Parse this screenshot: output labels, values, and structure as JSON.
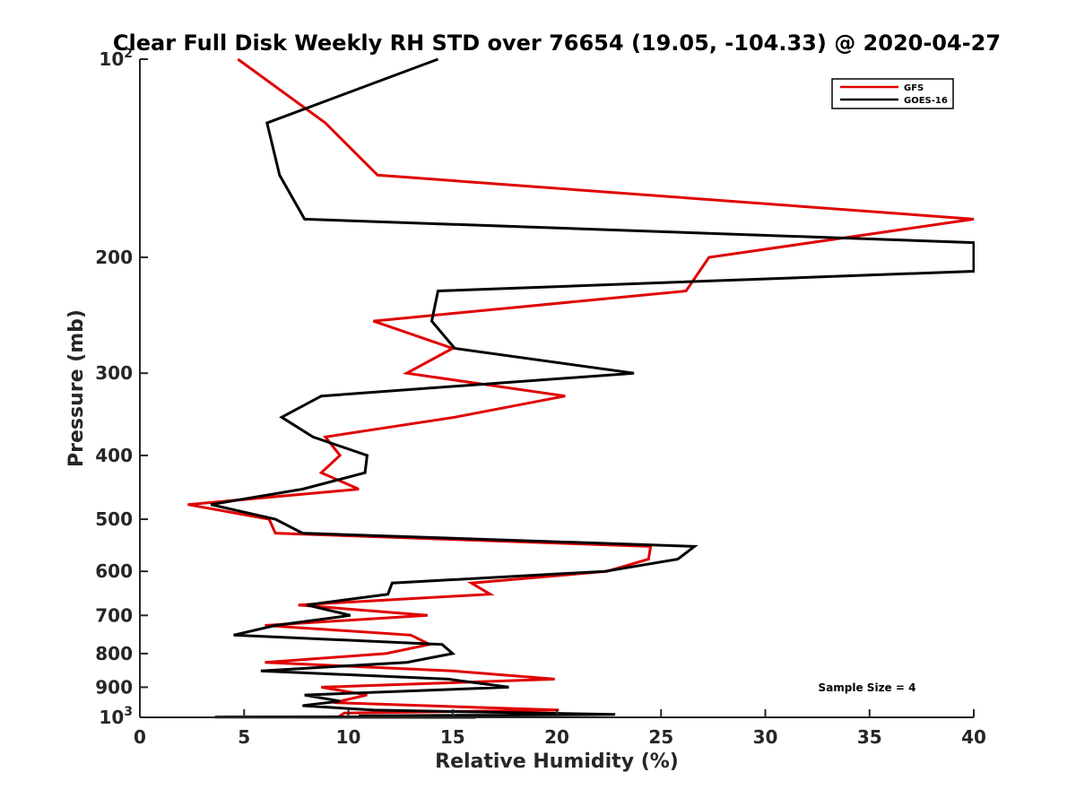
{
  "chart_data": {
    "type": "line",
    "title": "Clear Full Disk Weekly RH STD over 76654 (19.05, -104.33) @ 2020-04-27",
    "xlabel": "Relative Humidity (%)",
    "ylabel": "Pressure (mb)",
    "xlim": [
      0,
      40
    ],
    "ylim": [
      100,
      1000
    ],
    "y_scale": "log",
    "y_reversed": true,
    "grid": false,
    "legend_position": "top-right",
    "x_ticks": [
      0,
      5,
      10,
      15,
      20,
      25,
      30,
      35,
      40
    ],
    "x_tick_labels": [
      "0",
      "5",
      "10",
      "15",
      "20",
      "25",
      "30",
      "35",
      "40"
    ],
    "y_ticks": [
      100,
      200,
      300,
      400,
      500,
      600,
      700,
      800,
      900,
      1000
    ],
    "y_tick_labels": [
      {
        "base": "10",
        "exp": "2"
      },
      {
        "base": "200",
        "exp": ""
      },
      {
        "base": "300",
        "exp": ""
      },
      {
        "base": "400",
        "exp": ""
      },
      {
        "base": "500",
        "exp": ""
      },
      {
        "base": "600",
        "exp": ""
      },
      {
        "base": "700",
        "exp": ""
      },
      {
        "base": "800",
        "exp": ""
      },
      {
        "base": "900",
        "exp": ""
      },
      {
        "base": "10",
        "exp": "3"
      }
    ],
    "annotation": "Sample Size = 4",
    "series": [
      {
        "name": "GFS",
        "color": "#e00000",
        "points": [
          [
            4.7,
            100
          ],
          [
            8.9,
            125
          ],
          [
            11.4,
            150
          ],
          [
            40,
            175
          ],
          [
            27.3,
            200
          ],
          [
            26.2,
            225
          ],
          [
            11.2,
            250
          ],
          [
            15.0,
            275
          ],
          [
            12.8,
            300
          ],
          [
            20.4,
            325
          ],
          [
            15.1,
            350
          ],
          [
            8.9,
            375
          ],
          [
            9.6,
            400
          ],
          [
            8.7,
            425
          ],
          [
            10.5,
            450
          ],
          [
            2.3,
            475
          ],
          [
            6.2,
            500
          ],
          [
            6.5,
            525
          ],
          [
            24.5,
            550
          ],
          [
            24.4,
            575
          ],
          [
            22.4,
            600
          ],
          [
            15.9,
            625
          ],
          [
            16.8,
            650
          ],
          [
            7.6,
            675
          ],
          [
            13.8,
            700
          ],
          [
            6.0,
            725
          ],
          [
            13.0,
            750
          ],
          [
            13.9,
            775
          ],
          [
            11.8,
            800
          ],
          [
            6.0,
            825
          ],
          [
            15.0,
            850
          ],
          [
            19.9,
            875
          ],
          [
            8.7,
            900
          ],
          [
            10.9,
            925
          ],
          [
            9.3,
            950
          ],
          [
            20.1,
            975
          ],
          [
            9.8,
            985
          ],
          [
            9.5,
            1000
          ]
        ]
      },
      {
        "name": "GOES-16",
        "color": "#000000",
        "points": [
          [
            14.3,
            100
          ],
          [
            6.1,
            125
          ],
          [
            6.7,
            150
          ],
          [
            7.9,
            175
          ],
          [
            40,
            190
          ],
          [
            40,
            210
          ],
          [
            14.3,
            225
          ],
          [
            14.0,
            250
          ],
          [
            15.1,
            275
          ],
          [
            23.7,
            300
          ],
          [
            8.7,
            325
          ],
          [
            6.8,
            350
          ],
          [
            8.3,
            375
          ],
          [
            10.9,
            400
          ],
          [
            10.8,
            425
          ],
          [
            7.8,
            450
          ],
          [
            3.4,
            475
          ],
          [
            6.5,
            500
          ],
          [
            7.8,
            525
          ],
          [
            26.6,
            550
          ],
          [
            25.8,
            575
          ],
          [
            22.3,
            600
          ],
          [
            12.1,
            625
          ],
          [
            11.9,
            650
          ],
          [
            8.0,
            675
          ],
          [
            10.1,
            700
          ],
          [
            6.5,
            725
          ],
          [
            4.5,
            750
          ],
          [
            14.5,
            775
          ],
          [
            15.0,
            800
          ],
          [
            12.8,
            825
          ],
          [
            5.8,
            850
          ],
          [
            14.8,
            875
          ],
          [
            17.7,
            900
          ],
          [
            7.9,
            925
          ],
          [
            9.6,
            945
          ],
          [
            7.8,
            960
          ],
          [
            11.2,
            975
          ],
          [
            22.8,
            990
          ],
          [
            10.5,
            995
          ],
          [
            11.0,
            998
          ],
          [
            3.6,
            999
          ],
          [
            16.1,
            1000
          ],
          [
            11.2,
            1000
          ]
        ]
      }
    ]
  }
}
